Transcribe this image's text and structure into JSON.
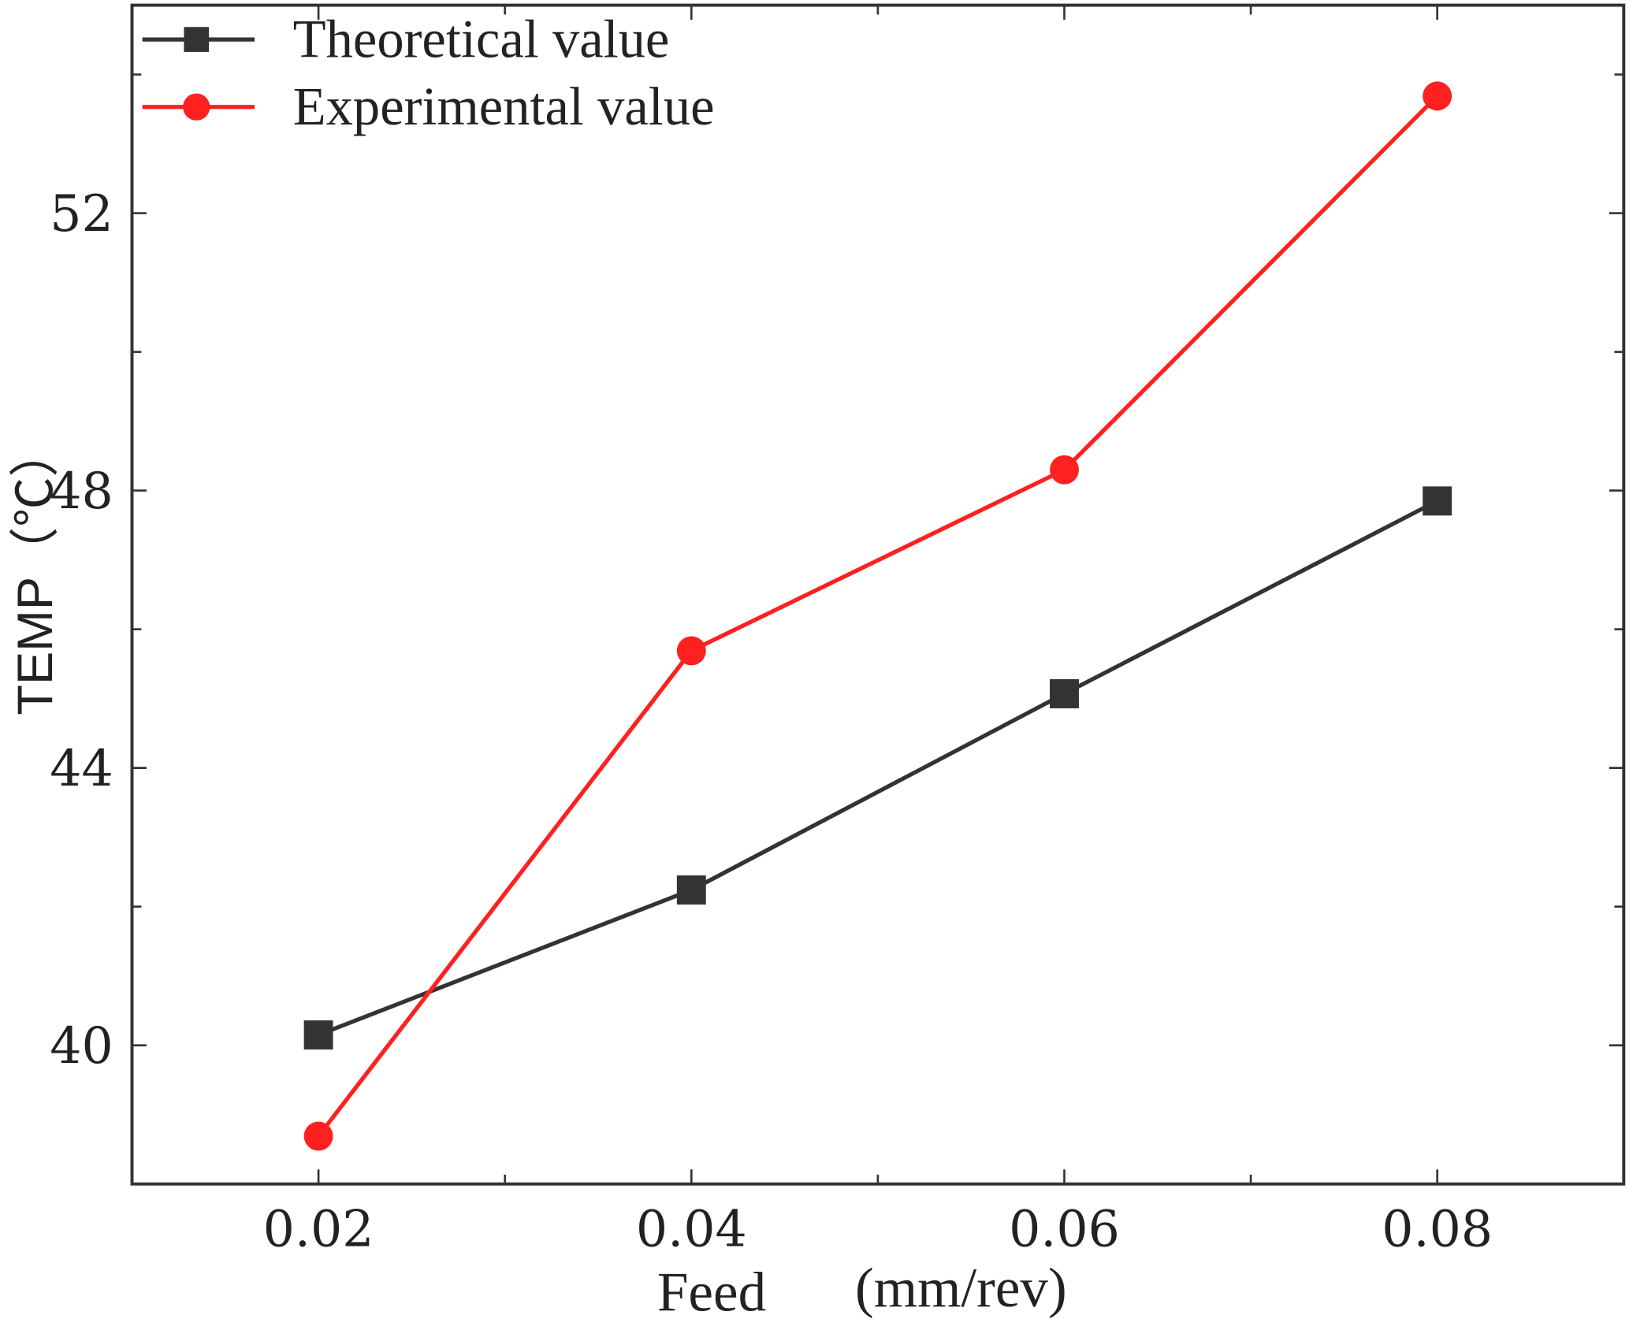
{
  "chart_data": {
    "type": "line",
    "title": "",
    "xlabel": "Feed (mm/rev)",
    "xlabel_parts": [
      "Feed",
      "(mm/rev)"
    ],
    "ylabel": "TEMP（℃）",
    "xlim": [
      0.01,
      0.09
    ],
    "ylim": [
      38,
      55
    ],
    "x": [
      0.02,
      0.04,
      0.06,
      0.08
    ],
    "x_tick_labels": [
      "0.02",
      "0.04",
      "0.06",
      "0.08"
    ],
    "y_ticks": [
      40,
      44,
      48,
      52
    ],
    "y_tick_labels": [
      "40",
      "44",
      "48",
      "52"
    ],
    "grid": false,
    "legend_position": "top-left",
    "series": [
      {
        "name": "Theoretical value",
        "color": "#333333",
        "marker": "square",
        "values": [
          40.15,
          42.24,
          45.07,
          47.85
        ]
      },
      {
        "name": "Experimental value",
        "color": "#ff2020",
        "marker": "circle",
        "values": [
          38.69,
          45.69,
          48.3,
          53.69
        ]
      }
    ]
  }
}
